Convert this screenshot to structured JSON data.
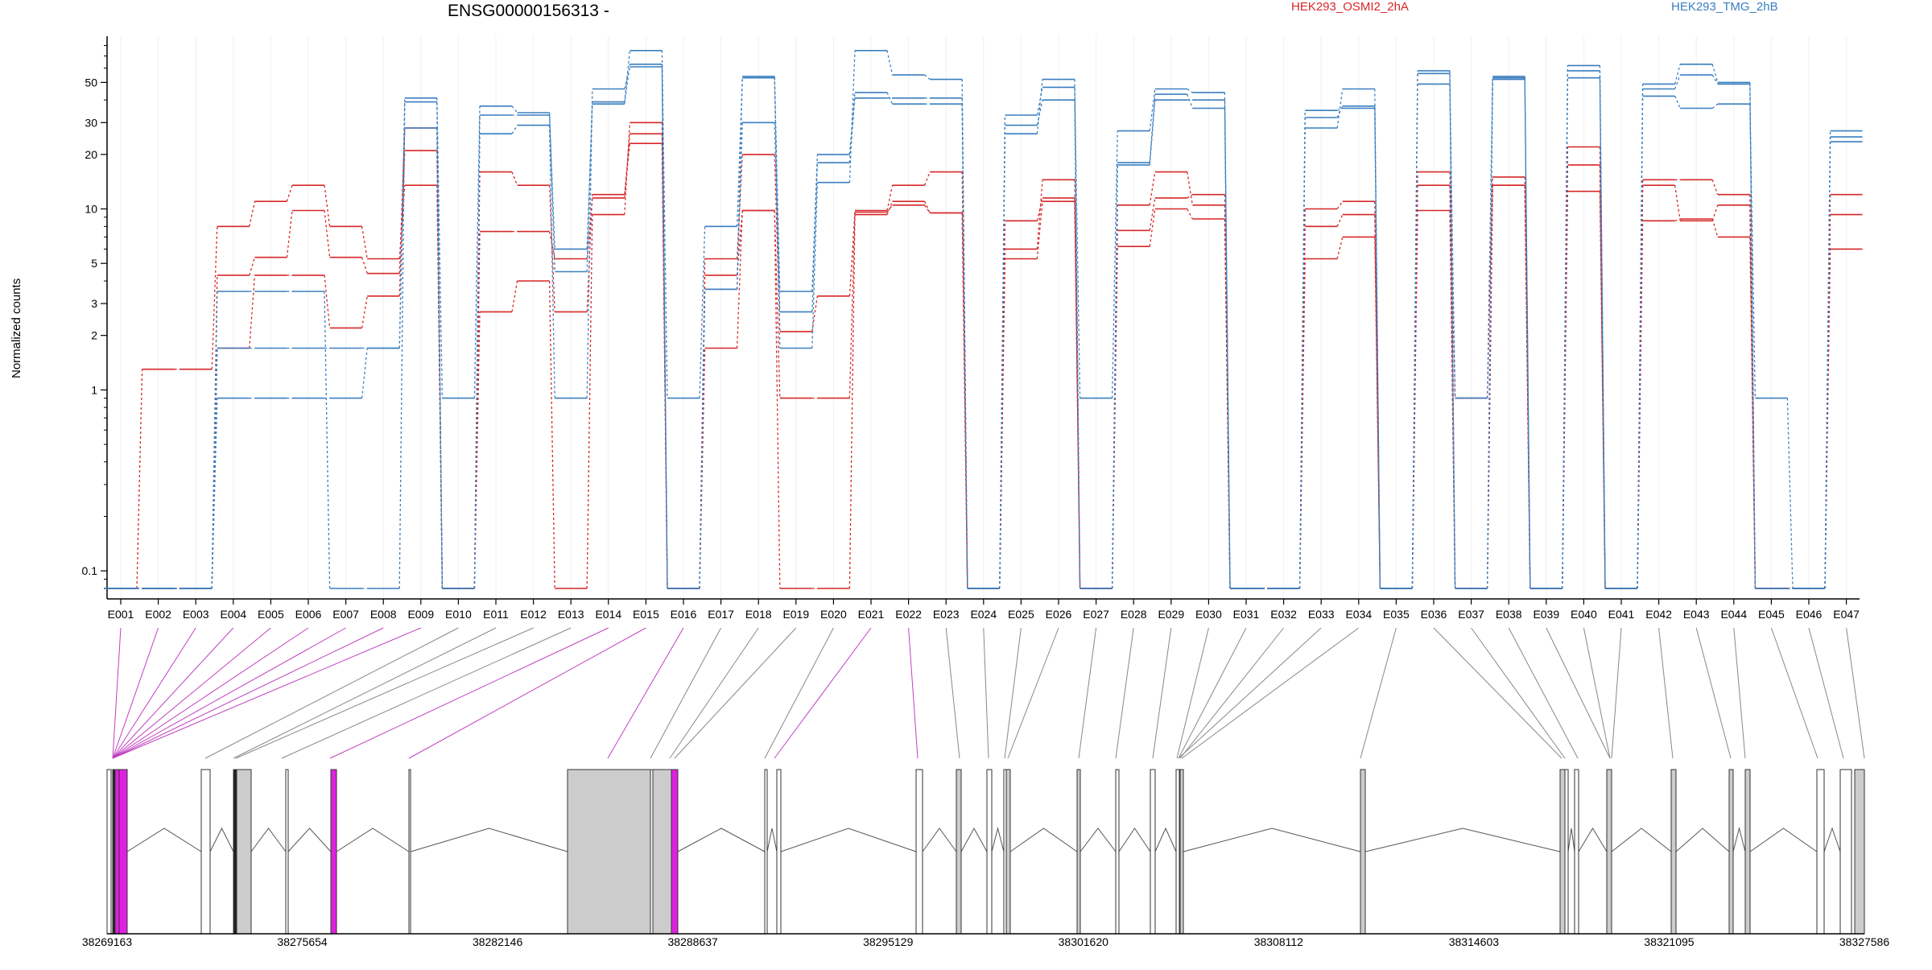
{
  "chart_data": {
    "type": "line",
    "title": "ENSG00000156313 -",
    "ylabel": "Normalized counts",
    "yscale": "log",
    "ylim": [
      0.07,
      90
    ],
    "yticks": [
      0.1,
      1,
      2,
      3,
      5,
      10,
      20,
      30,
      50
    ],
    "yticklabels": [
      "0.1",
      "1",
      "2",
      "3",
      "5",
      "10",
      "20",
      "30",
      "50"
    ],
    "categories": [
      "E001",
      "E002",
      "E003",
      "E004",
      "E005",
      "E006",
      "E007",
      "E008",
      "E009",
      "E010",
      "E011",
      "E012",
      "E013",
      "E014",
      "E015",
      "E016",
      "E017",
      "E018",
      "E019",
      "E020",
      "E021",
      "E022",
      "E023",
      "E024",
      "E025",
      "E026",
      "E027",
      "E028",
      "E029",
      "E030",
      "E031",
      "E032",
      "E033",
      "E034",
      "E035",
      "E036",
      "E037",
      "E038",
      "E039",
      "E040",
      "E041",
      "E042",
      "E043",
      "E044",
      "E045",
      "E046",
      "E047"
    ],
    "legend": [
      {
        "label": "HEK293_OSMI2_2hA",
        "color": "#d62728"
      },
      {
        "label": "HEK293_TMG_2hB",
        "color": "#3a7ebf"
      }
    ],
    "series": [
      {
        "group": "HEK293_OSMI2_2hA",
        "color": "#d62728",
        "values": [
          0.08,
          1.3,
          1.3,
          8,
          11,
          13.5,
          8,
          5.3,
          13.5,
          0.08,
          16,
          13.5,
          2.7,
          12,
          23,
          0.08,
          5.3,
          20,
          2.1,
          3.3,
          9.6,
          10.5,
          9.5,
          0.08,
          6,
          14.5,
          0.08,
          10.5,
          16,
          10.5,
          0.08,
          0.08,
          10,
          11,
          0.08,
          16,
          0.9,
          15,
          0.08,
          22,
          0.08,
          14.5,
          14.5,
          12,
          0.08,
          0.08,
          12
        ]
      },
      {
        "group": "HEK293_OSMI2_2hA",
        "color": "#d62728",
        "values": [
          0.08,
          0.08,
          0.08,
          4.3,
          5.4,
          9.8,
          5.4,
          4.4,
          28,
          0.08,
          7.5,
          7.5,
          5.3,
          11.5,
          26,
          0.08,
          4.3,
          9.8,
          0.9,
          0.9,
          9.8,
          13.5,
          16,
          0.08,
          8.6,
          11.5,
          0.08,
          6.2,
          10,
          8.8,
          0.08,
          0.08,
          8,
          9.3,
          0.08,
          13.5,
          0.08,
          13.5,
          0.08,
          12.5,
          0.08,
          13.5,
          8.6,
          10.5,
          0.08,
          0.08,
          9.3
        ]
      },
      {
        "group": "HEK293_OSMI2_2hA",
        "color": "#d62728",
        "values": [
          0.08,
          0.08,
          0.08,
          1.7,
          4.3,
          4.3,
          2.2,
          3.3,
          21,
          0.08,
          2.7,
          4,
          0.08,
          9.3,
          30,
          0.08,
          1.7,
          9.8,
          0.08,
          0.08,
          9.3,
          11,
          9.5,
          0.08,
          5.3,
          11,
          0.08,
          7.6,
          11.5,
          12,
          0.08,
          0.08,
          5.3,
          7,
          0.08,
          9.8,
          0.08,
          13.5,
          0.08,
          17.5,
          0.08,
          8.6,
          8.8,
          7,
          0.08,
          0.08,
          6
        ]
      },
      {
        "group": "HEK293_TMG_2hB",
        "color": "#3a7ebf",
        "values": [
          0.08,
          0.08,
          0.08,
          0.9,
          0.9,
          0.9,
          0.9,
          1.7,
          41,
          0.9,
          37,
          34,
          4.5,
          39,
          75,
          0.9,
          8,
          53,
          3.5,
          20,
          44,
          38,
          38,
          0.08,
          33,
          47,
          0.9,
          27,
          46,
          44,
          0.08,
          0.08,
          35,
          36,
          0.08,
          49,
          0.9,
          52,
          0.08,
          58,
          0.08,
          42,
          36,
          38,
          0.9,
          0.08,
          27
        ]
      },
      {
        "group": "HEK293_TMG_2hB",
        "color": "#3a7ebf",
        "values": [
          0.08,
          0.08,
          0.08,
          3.5,
          3.5,
          3.5,
          0.08,
          0.08,
          39,
          0.08,
          33,
          33,
          6,
          38,
          63,
          0.08,
          3.6,
          30,
          2.7,
          18,
          41,
          41,
          41,
          0.08,
          29,
          40,
          0.08,
          17.5,
          40,
          40,
          0.08,
          0.08,
          32,
          37,
          0.08,
          58,
          0.08,
          54,
          0.08,
          62,
          0.08,
          46,
          55,
          49,
          0.08,
          0.08,
          25
        ]
      },
      {
        "group": "HEK293_TMG_2hB",
        "color": "#3a7ebf",
        "values": [
          0.08,
          0.08,
          0.08,
          1.7,
          1.7,
          1.7,
          1.7,
          1.7,
          28,
          0.08,
          26,
          29,
          0.9,
          46,
          61,
          0.08,
          3.6,
          54,
          1.7,
          14,
          75,
          55,
          52,
          0.08,
          26,
          52,
          0.08,
          18,
          43,
          36,
          0.08,
          0.08,
          28,
          46,
          0.08,
          56,
          0.08,
          53,
          0.08,
          53,
          0.08,
          49,
          63,
          50,
          0.08,
          0.08,
          23.5
        ]
      }
    ]
  },
  "gene_model": {
    "genomic_ticks": [
      "38269163",
      "38275654",
      "38282146",
      "38288637",
      "38295129",
      "38301620",
      "38308112",
      "38314603",
      "38321095",
      "38327586"
    ],
    "highlight_color": "#e020e0"
  }
}
